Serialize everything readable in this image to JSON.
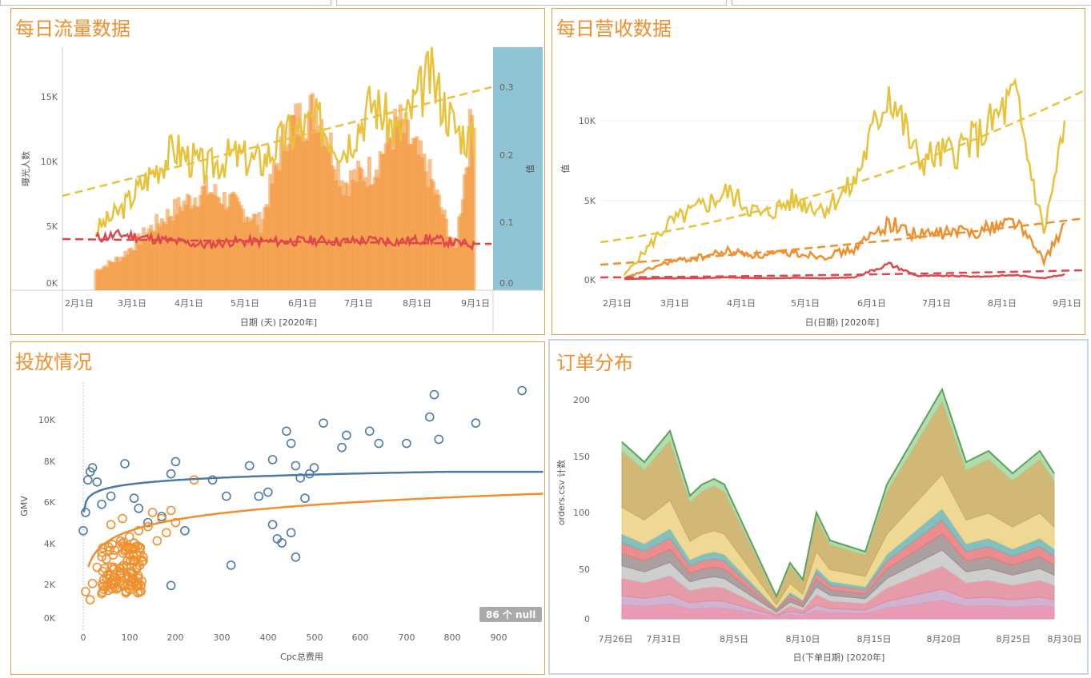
{
  "colors": {
    "yellow": "#e8c23a",
    "orange": "#f28e2b",
    "red": "#e0474c",
    "blue": "#4e79a7",
    "teal_band": "#8ec4d4",
    "title": "#f28e2b"
  },
  "traffic": {
    "title": "每日流量数据",
    "y_label": "曝光人数",
    "y2_label": "值",
    "x_label": "日期 (天) [2020年]",
    "y_ticks": [
      "15K",
      "10K",
      "5K",
      "0K"
    ],
    "y2_ticks": [
      "0.3",
      "0.2",
      "0.1",
      "0.0"
    ],
    "x_ticks": [
      "2月1日",
      "3月1日",
      "4月1日",
      "5月1日",
      "6月1日",
      "7月1日",
      "8月1日",
      "9月1日"
    ]
  },
  "revenue": {
    "title": "每日营收数据",
    "y_label": "值",
    "x_label": "日(日期) [2020年]",
    "y_ticks": [
      "10K",
      "5K",
      "0K"
    ],
    "x_ticks": [
      "2月1日",
      "3月1日",
      "4月1日",
      "5月1日",
      "6月1日",
      "7月1日",
      "8月1日",
      "9月1日"
    ]
  },
  "scatter": {
    "title": "投放情况",
    "y_label": "GMV",
    "x_label": "Cpc总费用",
    "y_ticks": [
      "10K",
      "8K",
      "6K",
      "4K",
      "2K",
      "0K"
    ],
    "x_ticks": [
      "0",
      "100",
      "200",
      "300",
      "400",
      "500",
      "600",
      "700",
      "800",
      "900"
    ],
    "null_badge": "86 个 null"
  },
  "orders": {
    "title": "订单分布",
    "y_label": "orders.csv 计数",
    "x_label": "日(下单日期) [2020年]",
    "y_ticks": [
      "200",
      "150",
      "100",
      "50",
      "0"
    ],
    "x_ticks": [
      "7月26日",
      "7月31日",
      "8月5日",
      "8月10日",
      "8月15日",
      "8月20日",
      "8月25日",
      "8月30日"
    ]
  },
  "chart_data": [
    {
      "type": "bar+line",
      "title": "每日流量数据",
      "x": [
        "2020-01-25",
        "2020-02-01",
        "2020-02-15",
        "2020-03-01",
        "2020-03-15",
        "2020-04-01",
        "2020-04-15",
        "2020-05-01",
        "2020-05-15",
        "2020-06-01",
        "2020-06-15",
        "2020-07-01",
        "2020-07-15",
        "2020-08-01",
        "2020-08-15",
        "2020-08-25"
      ],
      "ylim": [
        0,
        18000
      ],
      "y2lim": [
        0,
        0.35
      ],
      "series": [
        {
          "values": [
            0,
            1500,
            2500,
            4500,
            6000,
            7500,
            6500,
            5000,
            12000,
            13500,
            8000,
            9000,
            12500,
            8500,
            3000,
            14000
          ]
        },
        {
          "values": [
            7000,
            4500,
            6000,
            8500,
            10500,
            9000,
            10000,
            9500,
            11500,
            12500,
            10500,
            14000,
            11500,
            16000,
            12000,
            11000
          ]
        },
        {
          "values": [
            0.07,
            0.075,
            0.08,
            0.075,
            0.07,
            0.065,
            0.07,
            0.07,
            0.07,
            0.072,
            0.07,
            0.072,
            0.07,
            0.074,
            0.068,
            0.065
          ]
        }
      ]
    },
    {
      "type": "line",
      "title": "每日营收数据",
      "x": [
        "2020-01-25",
        "2020-02-15",
        "2020-03-01",
        "2020-03-15",
        "2020-04-01",
        "2020-04-15",
        "2020-05-01",
        "2020-05-15",
        "2020-06-01",
        "2020-06-15",
        "2020-07-01",
        "2020-07-15",
        "2020-08-01",
        "2020-08-15",
        "2020-08-25"
      ],
      "ylim": [
        -500,
        14000
      ],
      "series": [
        {
          "values": [
            300,
            3500,
            4500,
            5500,
            4000,
            5000,
            4500,
            6000,
            12000,
            7500,
            8000,
            9000,
            11500,
            3000,
            9500
          ]
        },
        {
          "values": [
            100,
            1100,
            1400,
            1800,
            1500,
            1700,
            1500,
            1900,
            3600,
            2800,
            3000,
            3100,
            3800,
            1200,
            3400
          ]
        },
        {
          "values": [
            50,
            100,
            100,
            150,
            100,
            120,
            100,
            150,
            1000,
            250,
            250,
            200,
            300,
            100,
            350
          ]
        }
      ]
    },
    {
      "type": "scatter",
      "title": "投放情况",
      "xlabel": "Cpc总费用",
      "ylabel": "GMV",
      "xlim": [
        -50,
        1000
      ],
      "ylim": [
        -500,
        11500
      ],
      "series": [
        {
          "points": [
            [
              0,
              4300
            ],
            [
              5,
              5200
            ],
            [
              10,
              6800
            ],
            [
              15,
              7200
            ],
            [
              20,
              7400
            ],
            [
              30,
              6700
            ],
            [
              40,
              5600
            ],
            [
              60,
              6000
            ],
            [
              90,
              7600
            ],
            [
              110,
              5900
            ],
            [
              120,
              5400
            ],
            [
              140,
              4700
            ],
            [
              170,
              5000
            ],
            [
              190,
              7100
            ],
            [
              200,
              7700
            ],
            [
              220,
              4300
            ],
            [
              280,
              6800
            ],
            [
              310,
              6000
            ],
            [
              320,
              2600
            ],
            [
              360,
              7500
            ],
            [
              380,
              6000
            ],
            [
              400,
              6200
            ],
            [
              410,
              7800
            ],
            [
              420,
              3900
            ],
            [
              430,
              3700
            ],
            [
              440,
              9200
            ],
            [
              450,
              8600
            ],
            [
              460,
              7500
            ],
            [
              470,
              6900
            ],
            [
              480,
              5900
            ],
            [
              490,
              7100
            ],
            [
              500,
              7400
            ],
            [
              520,
              9600
            ],
            [
              560,
              8400
            ],
            [
              570,
              9000
            ],
            [
              620,
              9200
            ],
            [
              640,
              8600
            ],
            [
              700,
              8600
            ],
            [
              750,
              9900
            ],
            [
              760,
              11000
            ],
            [
              770,
              8800
            ],
            [
              850,
              9600
            ],
            [
              950,
              11200
            ],
            [
              190,
              1600
            ],
            [
              410,
              4600
            ],
            [
              450,
              4200
            ],
            [
              460,
              3000
            ]
          ]
        },
        {
          "points": [
            [
              5,
              1300
            ],
            [
              15,
              900
            ],
            [
              20,
              1700
            ],
            [
              30,
              2500
            ],
            [
              40,
              1200
            ],
            [
              50,
              2900
            ],
            [
              55,
              3500
            ],
            [
              60,
              4600
            ],
            [
              65,
              3100
            ],
            [
              70,
              2000
            ],
            [
              75,
              1500
            ],
            [
              80,
              2200
            ],
            [
              85,
              4900
            ],
            [
              90,
              3300
            ],
            [
              95,
              2800
            ],
            [
              100,
              4000
            ],
            [
              105,
              1800
            ],
            [
              110,
              3700
            ],
            [
              115,
              2400
            ],
            [
              120,
              4300
            ],
            [
              125,
              1600
            ],
            [
              130,
              3000
            ],
            [
              140,
              4500
            ],
            [
              150,
              5200
            ],
            [
              160,
              3800
            ],
            [
              170,
              4900
            ],
            [
              180,
              4200
            ],
            [
              190,
              5300
            ],
            [
              200,
              4700
            ],
            [
              240,
              6800
            ]
          ]
        }
      ],
      "curves": "logarithmic trend per series"
    },
    {
      "type": "area",
      "title": "订单分布",
      "xlabel": "日(下单日期) [2020年]",
      "ylabel": "orders.csv 计数",
      "x": [
        "7月26日",
        "7月28日",
        "7月30日",
        "8月1日",
        "8月3日",
        "8月5日",
        "8月9日",
        "8月11日",
        "8月13日",
        "8月15日",
        "8月17日",
        "8月20日",
        "8月22日",
        "8月25日",
        "8月28日",
        "8月30日"
      ],
      "ylim": [
        0,
        210
      ],
      "series": [
        {
          "values": [
            158,
            140,
            168,
            110,
            125,
            120,
            20,
            50,
            95,
            70,
            60,
            120,
            205,
            140,
            150,
            130
          ]
        }
      ]
    }
  ]
}
